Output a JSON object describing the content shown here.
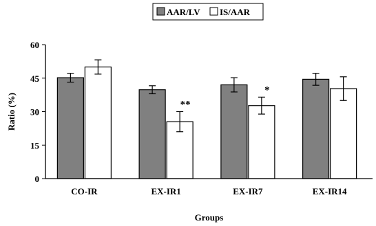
{
  "chart_data": {
    "type": "bar",
    "title": "",
    "xlabel": "Groups",
    "ylabel": "Ratio (%)",
    "ylim": [
      0,
      60
    ],
    "yticks": [
      0,
      15,
      30,
      45,
      60
    ],
    "categories": [
      "CO-IR",
      "EX-IR1",
      "EX-IR7",
      "EX-IR14"
    ],
    "series": [
      {
        "name": "AAR/LV",
        "color": "#808080",
        "values": [
          45.2,
          39.8,
          42.0,
          44.5
        ],
        "errors": [
          2.0,
          1.8,
          3.2,
          2.7
        ]
      },
      {
        "name": "IS/AAR",
        "color": "#ffffff",
        "values": [
          50.0,
          25.5,
          32.7,
          40.3
        ],
        "errors": [
          3.2,
          4.5,
          3.8,
          5.3
        ]
      }
    ],
    "annotations": [
      {
        "category": "EX-IR1",
        "series": "IS/AAR",
        "text": "**"
      },
      {
        "category": "EX-IR7",
        "series": "IS/AAR",
        "text": "*"
      }
    ],
    "legend_position": "top-center",
    "grid": false
  }
}
